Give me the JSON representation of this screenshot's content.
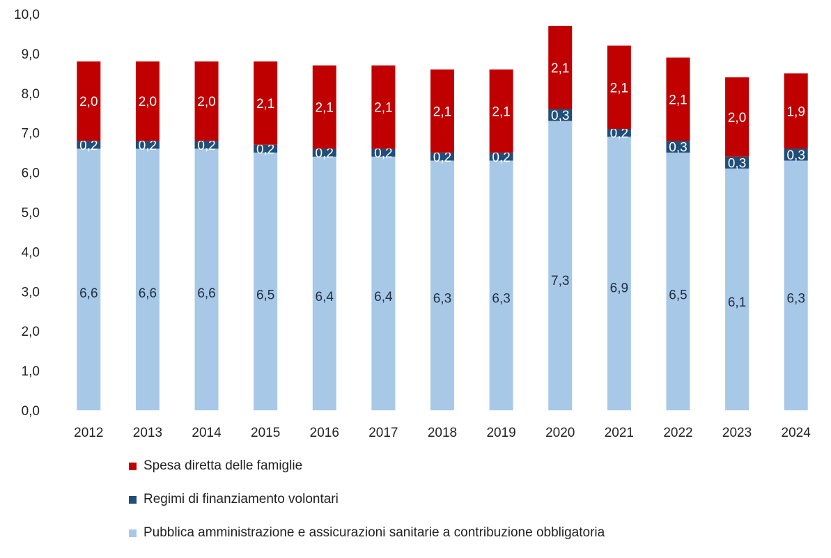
{
  "chart_data": {
    "type": "bar",
    "stacked": true,
    "categories": [
      "2012",
      "2013",
      "2014",
      "2015",
      "2016",
      "2017",
      "2018",
      "2019",
      "2020",
      "2021",
      "2022",
      "2023",
      "2024"
    ],
    "series": [
      {
        "name": "Pubblica amministrazione e assicurazioni sanitarie a contribuzione obbligatoria",
        "color": "#a8c8e8",
        "label_color": "#1f2f3f",
        "values": [
          6.6,
          6.6,
          6.6,
          6.5,
          6.4,
          6.4,
          6.3,
          6.3,
          7.3,
          6.9,
          6.5,
          6.1,
          6.3
        ],
        "labels": [
          "6,6",
          "6,6",
          "6,6",
          "6,5",
          "6,4",
          "6,4",
          "6,3",
          "6,3",
          "7,3",
          "6,9",
          "6,5",
          "6,1",
          "6,3"
        ]
      },
      {
        "name": "Regimi di finanziamento volontari",
        "color": "#1f4e79",
        "label_color": "#ffffff",
        "values": [
          0.2,
          0.2,
          0.2,
          0.2,
          0.2,
          0.2,
          0.2,
          0.2,
          0.3,
          0.2,
          0.3,
          0.3,
          0.3
        ],
        "labels": [
          "0,2",
          "0,2",
          "0,2",
          "0,2",
          "0,2",
          "0,2",
          "0,2",
          "0,2",
          "0,3",
          "0,2",
          "0,3",
          "0,3",
          "0,3"
        ]
      },
      {
        "name": "Spesa diretta delle famiglie",
        "color": "#c00000",
        "label_color": "#ffffff",
        "values": [
          2.0,
          2.0,
          2.0,
          2.1,
          2.1,
          2.1,
          2.1,
          2.1,
          2.1,
          2.1,
          2.1,
          2.0,
          1.9
        ],
        "labels": [
          "2,0",
          "2,0",
          "2,0",
          "2,1",
          "2,1",
          "2,1",
          "2,1",
          "2,1",
          "2,1",
          "2,1",
          "2,1",
          "2,0",
          "1,9"
        ]
      }
    ],
    "yticks": [
      "0,0",
      "1,0",
      "2,0",
      "3,0",
      "4,0",
      "5,0",
      "6,0",
      "7,0",
      "8,0",
      "9,0",
      "10,0"
    ],
    "ylim": [
      0,
      10
    ],
    "grid": false,
    "legend_position": "bottom"
  },
  "legend": {
    "items": [
      {
        "label": "Spesa diretta delle famiglie",
        "color": "#c00000"
      },
      {
        "label": "Regimi di finanziamento volontari",
        "color": "#1f4e79"
      },
      {
        "label": "Pubblica amministrazione e assicurazioni sanitarie a contribuzione obbligatoria",
        "color": "#a8c8e8"
      }
    ]
  }
}
